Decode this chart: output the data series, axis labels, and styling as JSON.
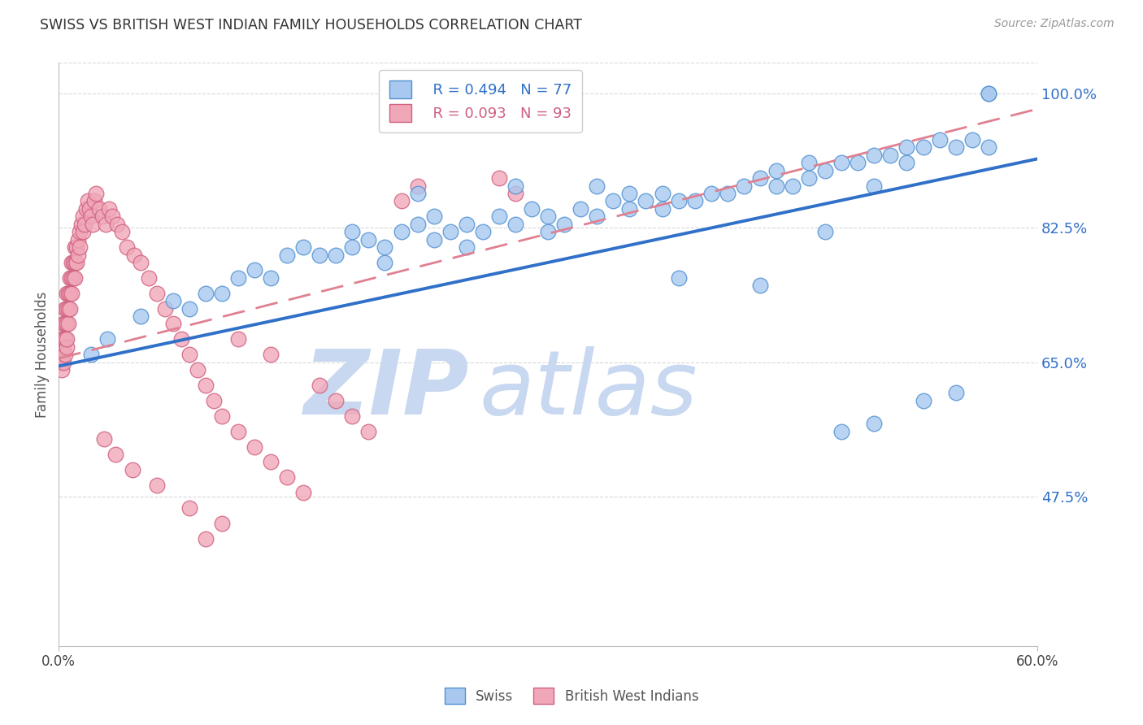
{
  "title": "SWISS VS BRITISH WEST INDIAN FAMILY HOUSEHOLDS CORRELATION CHART",
  "source": "Source: ZipAtlas.com",
  "ylabel": "Family Households",
  "ytick_labels": [
    "47.5%",
    "65.0%",
    "82.5%",
    "100.0%"
  ],
  "ytick_values": [
    0.475,
    0.65,
    0.825,
    1.0
  ],
  "ymin": 0.28,
  "ymax": 1.04,
  "xmin": 0.0,
  "xmax": 0.6,
  "xtick_vals": [
    0.0,
    0.6
  ],
  "xtick_labels": [
    "0.0%",
    "60.0%"
  ],
  "legend_blue_r": "R = 0.494",
  "legend_blue_n": "N = 77",
  "legend_pink_r": "R = 0.093",
  "legend_pink_n": "N = 93",
  "blue_color": "#a8c8f0",
  "pink_color": "#f0a8b8",
  "blue_edge_color": "#5090d0",
  "pink_edge_color": "#d06080",
  "blue_line_color": "#3070c8",
  "pink_line_color": "#e08090",
  "watermark_zip_color": "#c8d8f0",
  "watermark_atlas_color": "#c8d8f0",
  "grid_color": "#d8d8d8",
  "blue_scatter_x": [
    0.02,
    0.03,
    0.05,
    0.07,
    0.08,
    0.09,
    0.1,
    0.11,
    0.12,
    0.13,
    0.14,
    0.15,
    0.16,
    0.17,
    0.18,
    0.18,
    0.19,
    0.2,
    0.2,
    0.21,
    0.22,
    0.23,
    0.23,
    0.24,
    0.25,
    0.25,
    0.26,
    0.27,
    0.28,
    0.29,
    0.3,
    0.3,
    0.31,
    0.32,
    0.33,
    0.34,
    0.35,
    0.35,
    0.36,
    0.37,
    0.37,
    0.38,
    0.39,
    0.4,
    0.41,
    0.42,
    0.43,
    0.44,
    0.44,
    0.45,
    0.46,
    0.46,
    0.47,
    0.48,
    0.49,
    0.5,
    0.51,
    0.52,
    0.52,
    0.53,
    0.54,
    0.55,
    0.56,
    0.57,
    0.22,
    0.28,
    0.33,
    0.38,
    0.43,
    0.48,
    0.5,
    0.53,
    0.55,
    0.57,
    0.57,
    0.47,
    0.5
  ],
  "blue_scatter_y": [
    0.66,
    0.68,
    0.71,
    0.73,
    0.72,
    0.74,
    0.74,
    0.76,
    0.77,
    0.76,
    0.79,
    0.8,
    0.79,
    0.79,
    0.82,
    0.8,
    0.81,
    0.8,
    0.78,
    0.82,
    0.83,
    0.81,
    0.84,
    0.82,
    0.8,
    0.83,
    0.82,
    0.84,
    0.83,
    0.85,
    0.84,
    0.82,
    0.83,
    0.85,
    0.84,
    0.86,
    0.85,
    0.87,
    0.86,
    0.87,
    0.85,
    0.86,
    0.86,
    0.87,
    0.87,
    0.88,
    0.89,
    0.88,
    0.9,
    0.88,
    0.89,
    0.91,
    0.9,
    0.91,
    0.91,
    0.92,
    0.92,
    0.93,
    0.91,
    0.93,
    0.94,
    0.93,
    0.94,
    0.93,
    0.87,
    0.88,
    0.88,
    0.76,
    0.75,
    0.56,
    0.57,
    0.6,
    0.61,
    1.0,
    1.0,
    0.82,
    0.88
  ],
  "pink_scatter_x": [
    0.001,
    0.001,
    0.001,
    0.002,
    0.002,
    0.002,
    0.002,
    0.003,
    0.003,
    0.003,
    0.003,
    0.004,
    0.004,
    0.004,
    0.004,
    0.005,
    0.005,
    0.005,
    0.005,
    0.005,
    0.006,
    0.006,
    0.006,
    0.007,
    0.007,
    0.007,
    0.008,
    0.008,
    0.008,
    0.009,
    0.009,
    0.01,
    0.01,
    0.01,
    0.011,
    0.011,
    0.012,
    0.012,
    0.013,
    0.013,
    0.014,
    0.015,
    0.015,
    0.016,
    0.017,
    0.018,
    0.019,
    0.02,
    0.021,
    0.022,
    0.023,
    0.025,
    0.027,
    0.029,
    0.031,
    0.033,
    0.036,
    0.039,
    0.042,
    0.046,
    0.05,
    0.055,
    0.06,
    0.065,
    0.07,
    0.075,
    0.08,
    0.085,
    0.09,
    0.095,
    0.1,
    0.11,
    0.12,
    0.13,
    0.14,
    0.15,
    0.16,
    0.17,
    0.18,
    0.19,
    0.21,
    0.22,
    0.27,
    0.28,
    0.11,
    0.13,
    0.09,
    0.1,
    0.08,
    0.06,
    0.045,
    0.035,
    0.028
  ],
  "pink_scatter_y": [
    0.65,
    0.66,
    0.67,
    0.64,
    0.66,
    0.67,
    0.68,
    0.65,
    0.67,
    0.68,
    0.7,
    0.66,
    0.68,
    0.7,
    0.72,
    0.67,
    0.68,
    0.7,
    0.72,
    0.74,
    0.7,
    0.72,
    0.74,
    0.72,
    0.74,
    0.76,
    0.74,
    0.76,
    0.78,
    0.76,
    0.78,
    0.76,
    0.78,
    0.8,
    0.78,
    0.8,
    0.79,
    0.81,
    0.8,
    0.82,
    0.83,
    0.82,
    0.84,
    0.83,
    0.85,
    0.86,
    0.85,
    0.84,
    0.83,
    0.86,
    0.87,
    0.85,
    0.84,
    0.83,
    0.85,
    0.84,
    0.83,
    0.82,
    0.8,
    0.79,
    0.78,
    0.76,
    0.74,
    0.72,
    0.7,
    0.68,
    0.66,
    0.64,
    0.62,
    0.6,
    0.58,
    0.56,
    0.54,
    0.52,
    0.5,
    0.48,
    0.62,
    0.6,
    0.58,
    0.56,
    0.86,
    0.88,
    0.89,
    0.87,
    0.68,
    0.66,
    0.42,
    0.44,
    0.46,
    0.49,
    0.51,
    0.53,
    0.55
  ],
  "blue_trend_x": [
    0.0,
    0.6
  ],
  "blue_trend_y": [
    0.645,
    0.915
  ],
  "pink_trend_x": [
    0.0,
    0.6
  ],
  "pink_trend_y": [
    0.655,
    0.98
  ]
}
